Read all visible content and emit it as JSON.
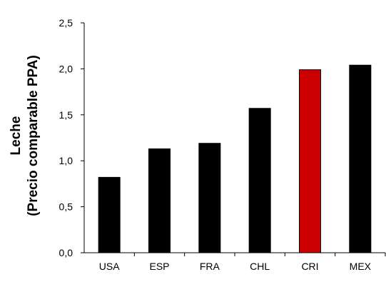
{
  "chart_data": {
    "type": "bar",
    "categories": [
      "USA",
      "ESP",
      "FRA",
      "CHL",
      "CRI",
      "MEX"
    ],
    "values": [
      0.82,
      1.13,
      1.19,
      1.57,
      1.99,
      2.04
    ],
    "ylabel_lines": [
      "Leche",
      "(Precio comparable PPA)"
    ],
    "xlabel": "",
    "ylim": [
      0,
      2.5
    ],
    "yticks": [
      "0,0",
      "0,5",
      "1,0",
      "1,5",
      "2,0",
      "2,5"
    ],
    "ytick_values": [
      0,
      0.5,
      1.0,
      1.5,
      2.0,
      2.5
    ],
    "grid": false,
    "bar_colors": [
      "#000000",
      "#000000",
      "#000000",
      "#000000",
      "#cc0000",
      "#000000"
    ],
    "highlight": "CRI"
  }
}
